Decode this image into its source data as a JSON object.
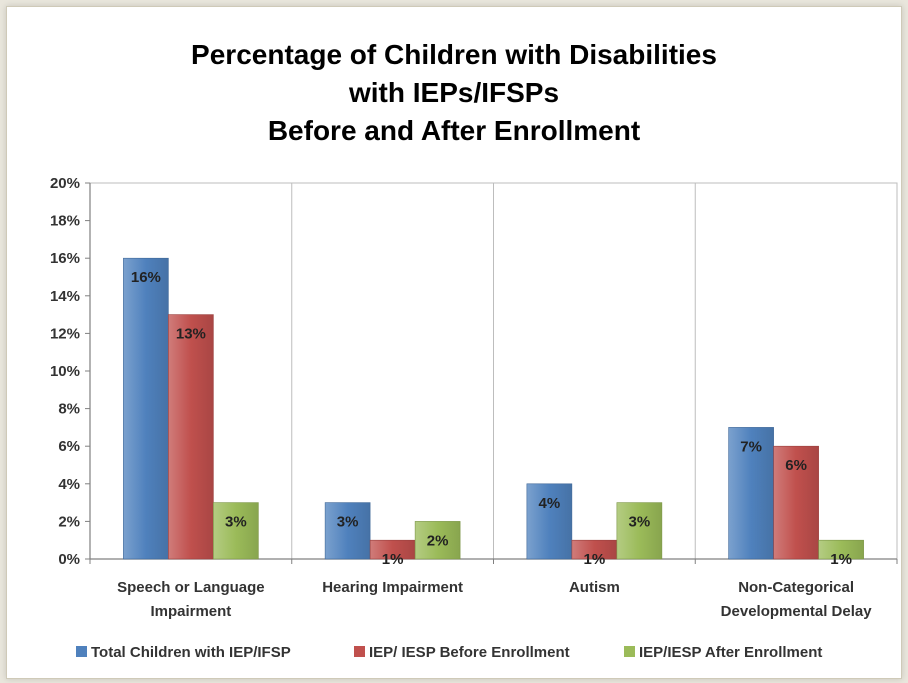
{
  "chart_data": {
    "type": "bar",
    "title_lines": [
      "Percentage of Children with Disabilities",
      "with IEPs/IFSPs",
      "Before and After Enrollment"
    ],
    "categories": [
      [
        "Speech or Language",
        "Impairment"
      ],
      [
        "Hearing Impairment"
      ],
      [
        "Autism"
      ],
      [
        "Non-Categorical",
        "Developmental Delay"
      ]
    ],
    "series": [
      {
        "name": "Total Children with IEP/IFSP",
        "color": "#4f81bd",
        "values": [
          16,
          3,
          4,
          7
        ]
      },
      {
        "name": "IEP/ IESP Before Enrollment",
        "color": "#c0504d",
        "values": [
          13,
          1,
          1,
          6
        ]
      },
      {
        "name": "IEP/IESP After Enrollment",
        "color": "#9bbb59",
        "values": [
          3,
          2,
          3,
          1
        ]
      }
    ],
    "data_labels": [
      [
        "16%",
        "3%",
        "4%",
        "7%"
      ],
      [
        "13%",
        "1%",
        "1%",
        "6%"
      ],
      [
        "3%",
        "2%",
        "3%",
        "1%"
      ]
    ],
    "y_ticks": [
      "0%",
      "2%",
      "4%",
      "6%",
      "8%",
      "10%",
      "12%",
      "14%",
      "16%",
      "18%",
      "20%"
    ],
    "ylim": [
      0,
      20
    ],
    "y_step": 2,
    "grid": "vertical separators between categories",
    "legend_position": "bottom"
  }
}
